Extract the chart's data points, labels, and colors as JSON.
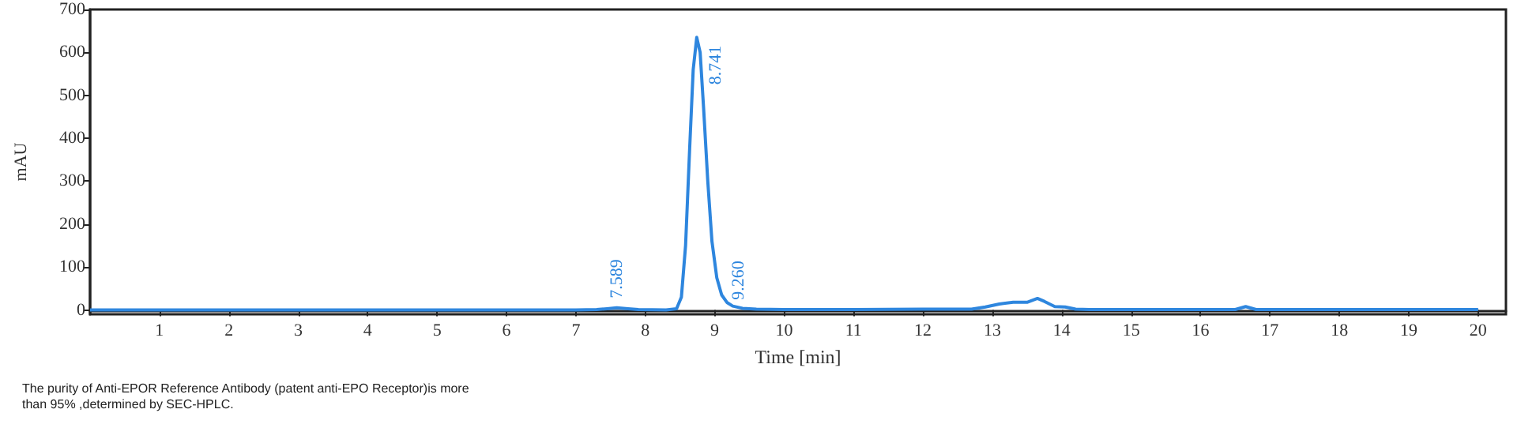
{
  "chart_data": {
    "type": "line",
    "xlabel": "Time [min]",
    "ylabel": "mAU",
    "xlim": [
      0,
      20.4
    ],
    "ylim": [
      -10,
      700
    ],
    "xticks": [
      1,
      2,
      3,
      4,
      5,
      6,
      7,
      8,
      9,
      10,
      11,
      12,
      13,
      14,
      15,
      16,
      17,
      18,
      19,
      20
    ],
    "yticks": [
      0,
      100,
      200,
      300,
      400,
      500,
      600,
      700
    ],
    "grid": false,
    "marker": "none",
    "line_style": "solid",
    "series": [
      {
        "color": "#2e86de",
        "x": [
          0,
          2,
          4,
          6,
          7,
          7.3,
          7.45,
          7.589,
          7.75,
          7.9,
          8.3,
          8.45,
          8.52,
          8.58,
          8.64,
          8.69,
          8.741,
          8.79,
          8.84,
          8.9,
          8.96,
          9.03,
          9.1,
          9.18,
          9.26,
          9.4,
          9.6,
          10,
          11,
          12,
          12.7,
          12.9,
          13.1,
          13.3,
          13.5,
          13.65,
          13.75,
          13.9,
          14.05,
          14.2,
          14.4,
          15,
          16,
          16.5,
          16.65,
          16.8,
          17,
          18,
          19,
          20
        ],
        "values": [
          0,
          0,
          0,
          0,
          0,
          1,
          3,
          5,
          3,
          1,
          0,
          3,
          30,
          150,
          380,
          560,
          635,
          600,
          470,
          300,
          160,
          75,
          35,
          17,
          9,
          4,
          2,
          1,
          1,
          2,
          2,
          7,
          14,
          18,
          18,
          27,
          20,
          8,
          7,
          2,
          1,
          1,
          1,
          1,
          8,
          1,
          1,
          1,
          1,
          1
        ]
      }
    ],
    "annotations": [
      {
        "text": "7.589",
        "x": 7.589,
        "y": 5
      },
      {
        "text": "8.741",
        "x": 8.741,
        "y": 635
      },
      {
        "text": "9.260",
        "x": 9.26,
        "y": 9
      },
      "The purity of Anti-EPOR Reference Antibody (patent anti-EPO Receptor)is more than 95% ,determined by SEC-HPLC."
    ]
  }
}
